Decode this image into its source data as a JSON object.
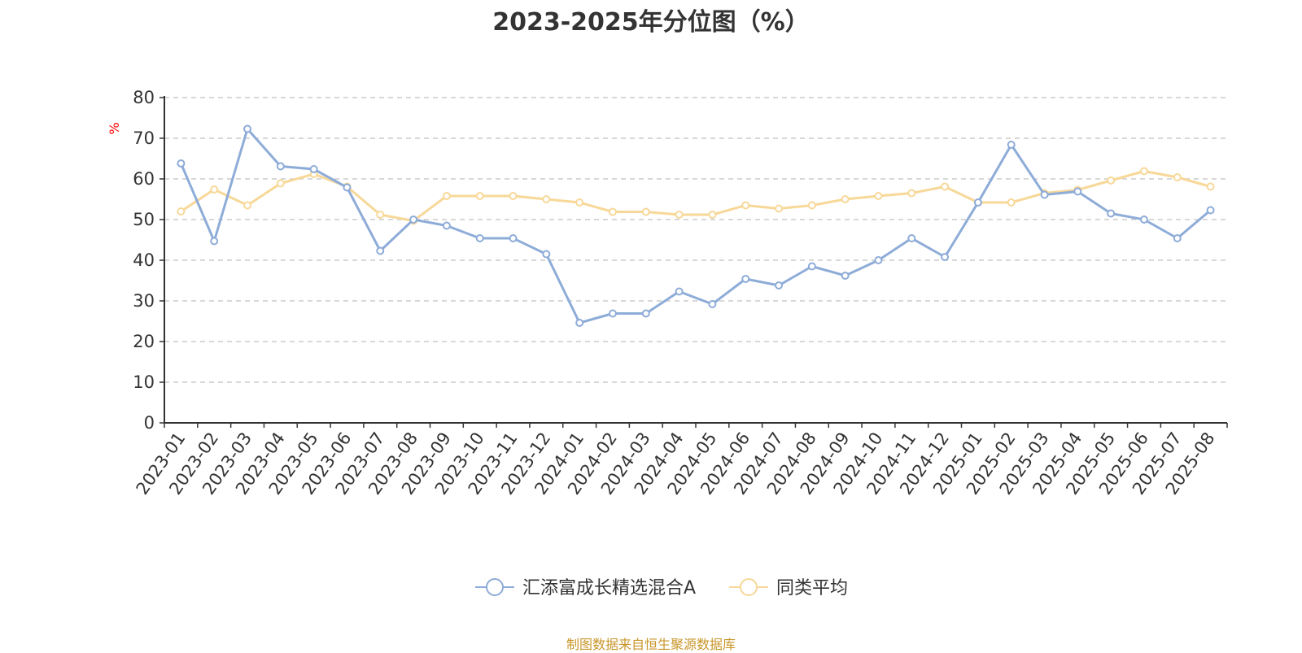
{
  "chart_data": {
    "type": "line",
    "title": "2023-2025年分位图（%）",
    "ylabel": "%",
    "ylim": [
      0,
      80
    ],
    "yticks": [
      0,
      10,
      20,
      30,
      40,
      50,
      60,
      70,
      80
    ],
    "grid": true,
    "legend_position": "bottom",
    "categories": [
      "2023-01",
      "2023-02",
      "2023-03",
      "2023-04",
      "2023-05",
      "2023-06",
      "2023-07",
      "2023-08",
      "2023-09",
      "2023-10",
      "2023-11",
      "2023-12",
      "2024-01",
      "2024-02",
      "2024-03",
      "2024-04",
      "2024-05",
      "2024-06",
      "2024-07",
      "2024-08",
      "2024-09",
      "2024-10",
      "2024-11",
      "2024-12",
      "2025-01",
      "2025-02",
      "2025-03",
      "2025-04",
      "2025-05",
      "2025-06",
      "2025-07",
      "2025-08"
    ],
    "series": [
      {
        "name": "汇添富成长精选混合A",
        "color": "#8eacd8",
        "values": [
          63.8,
          44.7,
          72.3,
          63.1,
          62.4,
          57.9,
          42.3,
          50.0,
          48.5,
          45.4,
          45.4,
          41.5,
          24.6,
          26.9,
          26.9,
          32.3,
          29.2,
          35.4,
          33.8,
          38.5,
          36.2,
          40.0,
          45.4,
          40.8,
          54.2,
          68.4,
          56.1,
          56.9,
          51.5,
          50.0,
          45.4,
          52.3
        ]
      },
      {
        "name": "同类平均",
        "color": "#f7d898",
        "values": [
          52.0,
          57.4,
          53.5,
          58.9,
          61.2,
          58.1,
          51.2,
          49.7,
          55.8,
          55.8,
          55.8,
          55.0,
          54.2,
          51.9,
          51.9,
          51.2,
          51.2,
          53.5,
          52.7,
          53.5,
          55.0,
          55.8,
          56.5,
          58.1,
          54.2,
          54.2,
          56.5,
          57.3,
          59.6,
          61.9,
          60.4,
          58.1
        ]
      }
    ]
  },
  "source_note": "制图数据来自恒生聚源数据库"
}
